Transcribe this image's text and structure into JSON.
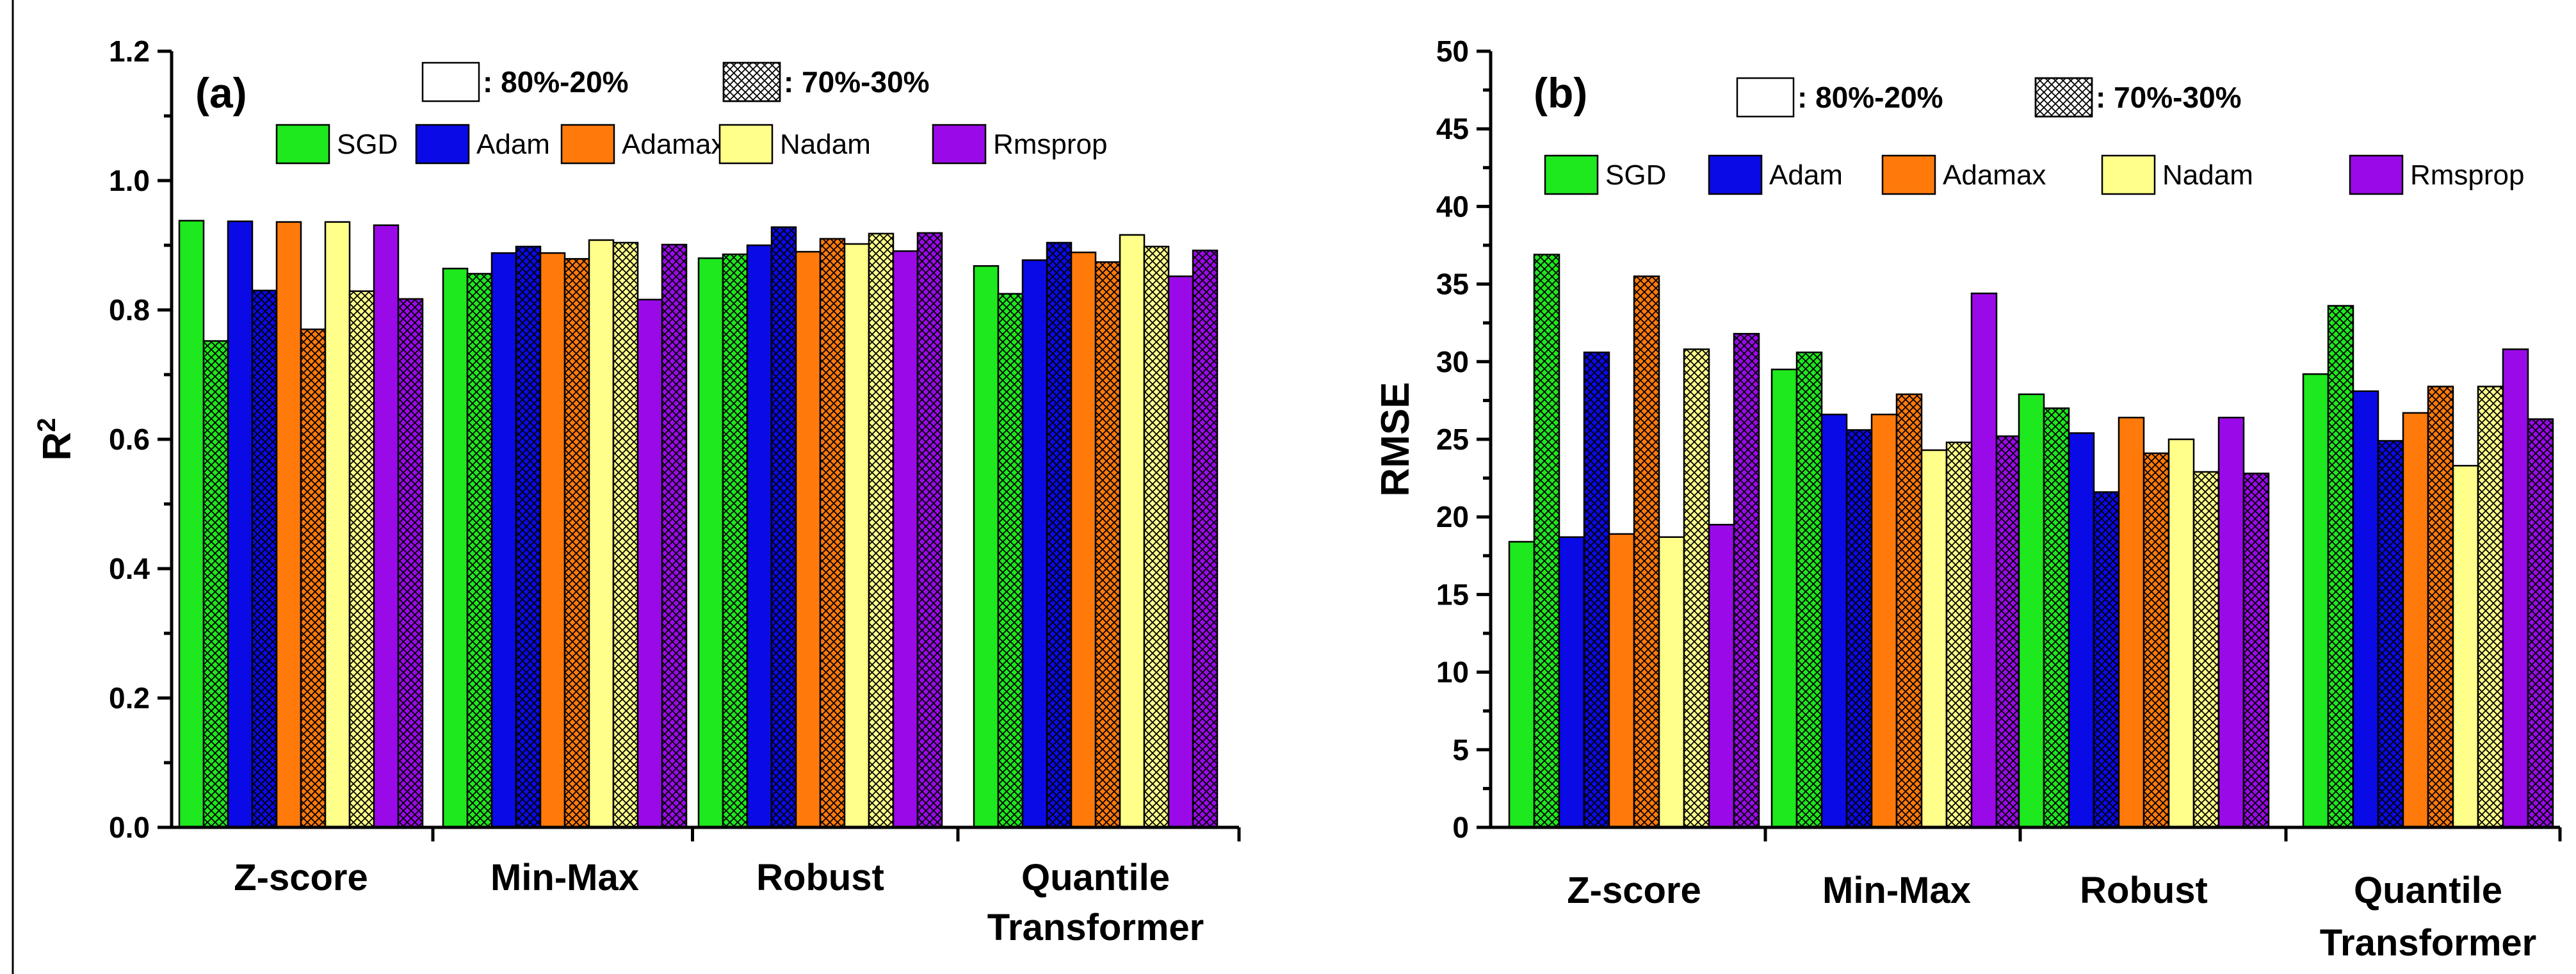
{
  "chart_data": [
    {
      "type": "bar",
      "panel_label": "(a)",
      "ylabel": "R",
      "ylabel_sup": "2",
      "xlabel": "",
      "ylim": [
        0.0,
        1.2
      ],
      "yticks": [
        0.0,
        0.2,
        0.4,
        0.6,
        0.8,
        1.0,
        1.2
      ],
      "ytick_labels": [
        "0.0",
        "0.2",
        "0.4",
        "0.6",
        "0.8",
        "1.0",
        "1.2"
      ],
      "categories": [
        [
          "Z-score"
        ],
        [
          "Min-Max"
        ],
        [
          "Robust"
        ],
        [
          "Quantile",
          "Transformer"
        ]
      ],
      "split_legend": [
        ": 80%-20%",
        ": 70%-30%"
      ],
      "series": [
        {
          "name": "SGD",
          "split": "80%-20%",
          "values": [
            0.938,
            0.864,
            0.88,
            0.868
          ]
        },
        {
          "name": "SGD",
          "split": "70%-30%",
          "values": [
            0.752,
            0.856,
            0.886,
            0.825
          ]
        },
        {
          "name": "Adam",
          "split": "80%-20%",
          "values": [
            0.937,
            0.888,
            0.9,
            0.877
          ]
        },
        {
          "name": "Adam",
          "split": "70%-30%",
          "values": [
            0.83,
            0.898,
            0.928,
            0.904
          ]
        },
        {
          "name": "Adamax",
          "split": "80%-20%",
          "values": [
            0.936,
            0.888,
            0.89,
            0.889
          ]
        },
        {
          "name": "Adamax",
          "split": "70%-30%",
          "values": [
            0.77,
            0.879,
            0.91,
            0.874
          ]
        },
        {
          "name": "Nadam",
          "split": "80%-20%",
          "values": [
            0.936,
            0.908,
            0.902,
            0.916
          ]
        },
        {
          "name": "Nadam",
          "split": "70%-30%",
          "values": [
            0.829,
            0.904,
            0.918,
            0.898
          ]
        },
        {
          "name": "Rmsprop",
          "split": "80%-20%",
          "values": [
            0.931,
            0.816,
            0.891,
            0.852
          ]
        },
        {
          "name": "Rmsprop",
          "split": "70%-30%",
          "values": [
            0.817,
            0.901,
            0.919,
            0.892
          ]
        }
      ]
    },
    {
      "type": "bar",
      "panel_label": "(b)",
      "ylabel": "RMSE",
      "ylabel_sup": "",
      "xlabel": "",
      "ylim": [
        0,
        50
      ],
      "yticks": [
        0,
        5,
        10,
        15,
        20,
        25,
        30,
        35,
        40,
        45,
        50
      ],
      "ytick_labels": [
        "0",
        "5",
        "10",
        "15",
        "20",
        "25",
        "30",
        "35",
        "40",
        "45",
        "50"
      ],
      "categories": [
        [
          "Z-score"
        ],
        [
          "Min-Max"
        ],
        [
          "Robust"
        ],
        [
          "Quantile",
          "Transformer"
        ]
      ],
      "split_legend": [
        ": 80%-20%",
        ": 70%-30%"
      ],
      "series": [
        {
          "name": "SGD",
          "split": "80%-20%",
          "values": [
            18.4,
            29.5,
            27.9,
            29.2
          ]
        },
        {
          "name": "SGD",
          "split": "70%-30%",
          "values": [
            36.9,
            30.6,
            27.0,
            33.6
          ]
        },
        {
          "name": "Adam",
          "split": "80%-20%",
          "values": [
            18.7,
            26.6,
            25.4,
            28.1
          ]
        },
        {
          "name": "Adam",
          "split": "70%-30%",
          "values": [
            30.6,
            25.6,
            21.6,
            24.9
          ]
        },
        {
          "name": "Adamax",
          "split": "80%-20%",
          "values": [
            18.9,
            26.6,
            26.4,
            26.7
          ]
        },
        {
          "name": "Adamax",
          "split": "70%-30%",
          "values": [
            35.5,
            27.9,
            24.1,
            28.4
          ]
        },
        {
          "name": "Nadam",
          "split": "80%-20%",
          "values": [
            18.7,
            24.3,
            25.0,
            23.3
          ]
        },
        {
          "name": "Nadam",
          "split": "70%-30%",
          "values": [
            30.8,
            24.8,
            22.9,
            28.4
          ]
        },
        {
          "name": "Rmsprop",
          "split": "80%-20%",
          "values": [
            19.5,
            34.4,
            26.4,
            30.8
          ]
        },
        {
          "name": "Rmsprop",
          "split": "70%-30%",
          "values": [
            31.8,
            25.2,
            22.8,
            26.3
          ]
        }
      ]
    }
  ],
  "legend": [
    {
      "name": "SGD",
      "color": "#1EE81E"
    },
    {
      "name": "Adam",
      "color": "#0A0AE6"
    },
    {
      "name": "Adamax",
      "color": "#FF7A0A"
    },
    {
      "name": "Nadam",
      "color": "#FFFF8A"
    },
    {
      "name": "Rmsprop",
      "color": "#9A0AE8"
    }
  ]
}
